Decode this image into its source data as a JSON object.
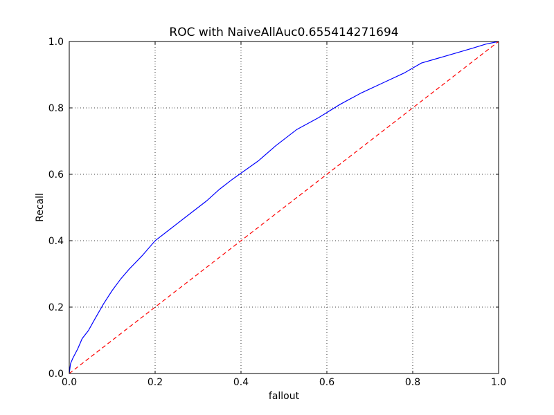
{
  "chart_data": {
    "type": "line",
    "title": "ROC with NaiveAllAuc0.655414271694",
    "xlabel": "fallout",
    "ylabel": "Recall",
    "xlim": [
      0.0,
      1.0
    ],
    "ylim": [
      0.0,
      1.0
    ],
    "xticks": [
      "0.0",
      "0.2",
      "0.4",
      "0.6",
      "0.8",
      "1.0"
    ],
    "yticks": [
      "0.0",
      "0.2",
      "0.4",
      "0.6",
      "0.8",
      "1.0"
    ],
    "grid": true,
    "legend": "none",
    "series": [
      {
        "color": "#0000ff",
        "style": "solid",
        "x": [
          0.0,
          0.003,
          0.008,
          0.02,
          0.03,
          0.045,
          0.06,
          0.08,
          0.1,
          0.12,
          0.14,
          0.17,
          0.2,
          0.23,
          0.27,
          0.32,
          0.35,
          0.38,
          0.44,
          0.48,
          0.53,
          0.58,
          0.63,
          0.68,
          0.73,
          0.78,
          0.82,
          0.86,
          0.9,
          0.94,
          0.97,
          1.0
        ],
        "y": [
          0.0,
          0.03,
          0.045,
          0.075,
          0.105,
          0.13,
          0.165,
          0.21,
          0.25,
          0.285,
          0.315,
          0.355,
          0.4,
          0.43,
          0.47,
          0.52,
          0.555,
          0.585,
          0.64,
          0.685,
          0.735,
          0.77,
          0.81,
          0.845,
          0.875,
          0.905,
          0.935,
          0.95,
          0.965,
          0.98,
          0.992,
          1.0
        ]
      },
      {
        "color": "#ff0000",
        "style": "dashed",
        "x": [
          0.0,
          1.0
        ],
        "y": [
          0.0,
          1.0
        ]
      }
    ]
  }
}
